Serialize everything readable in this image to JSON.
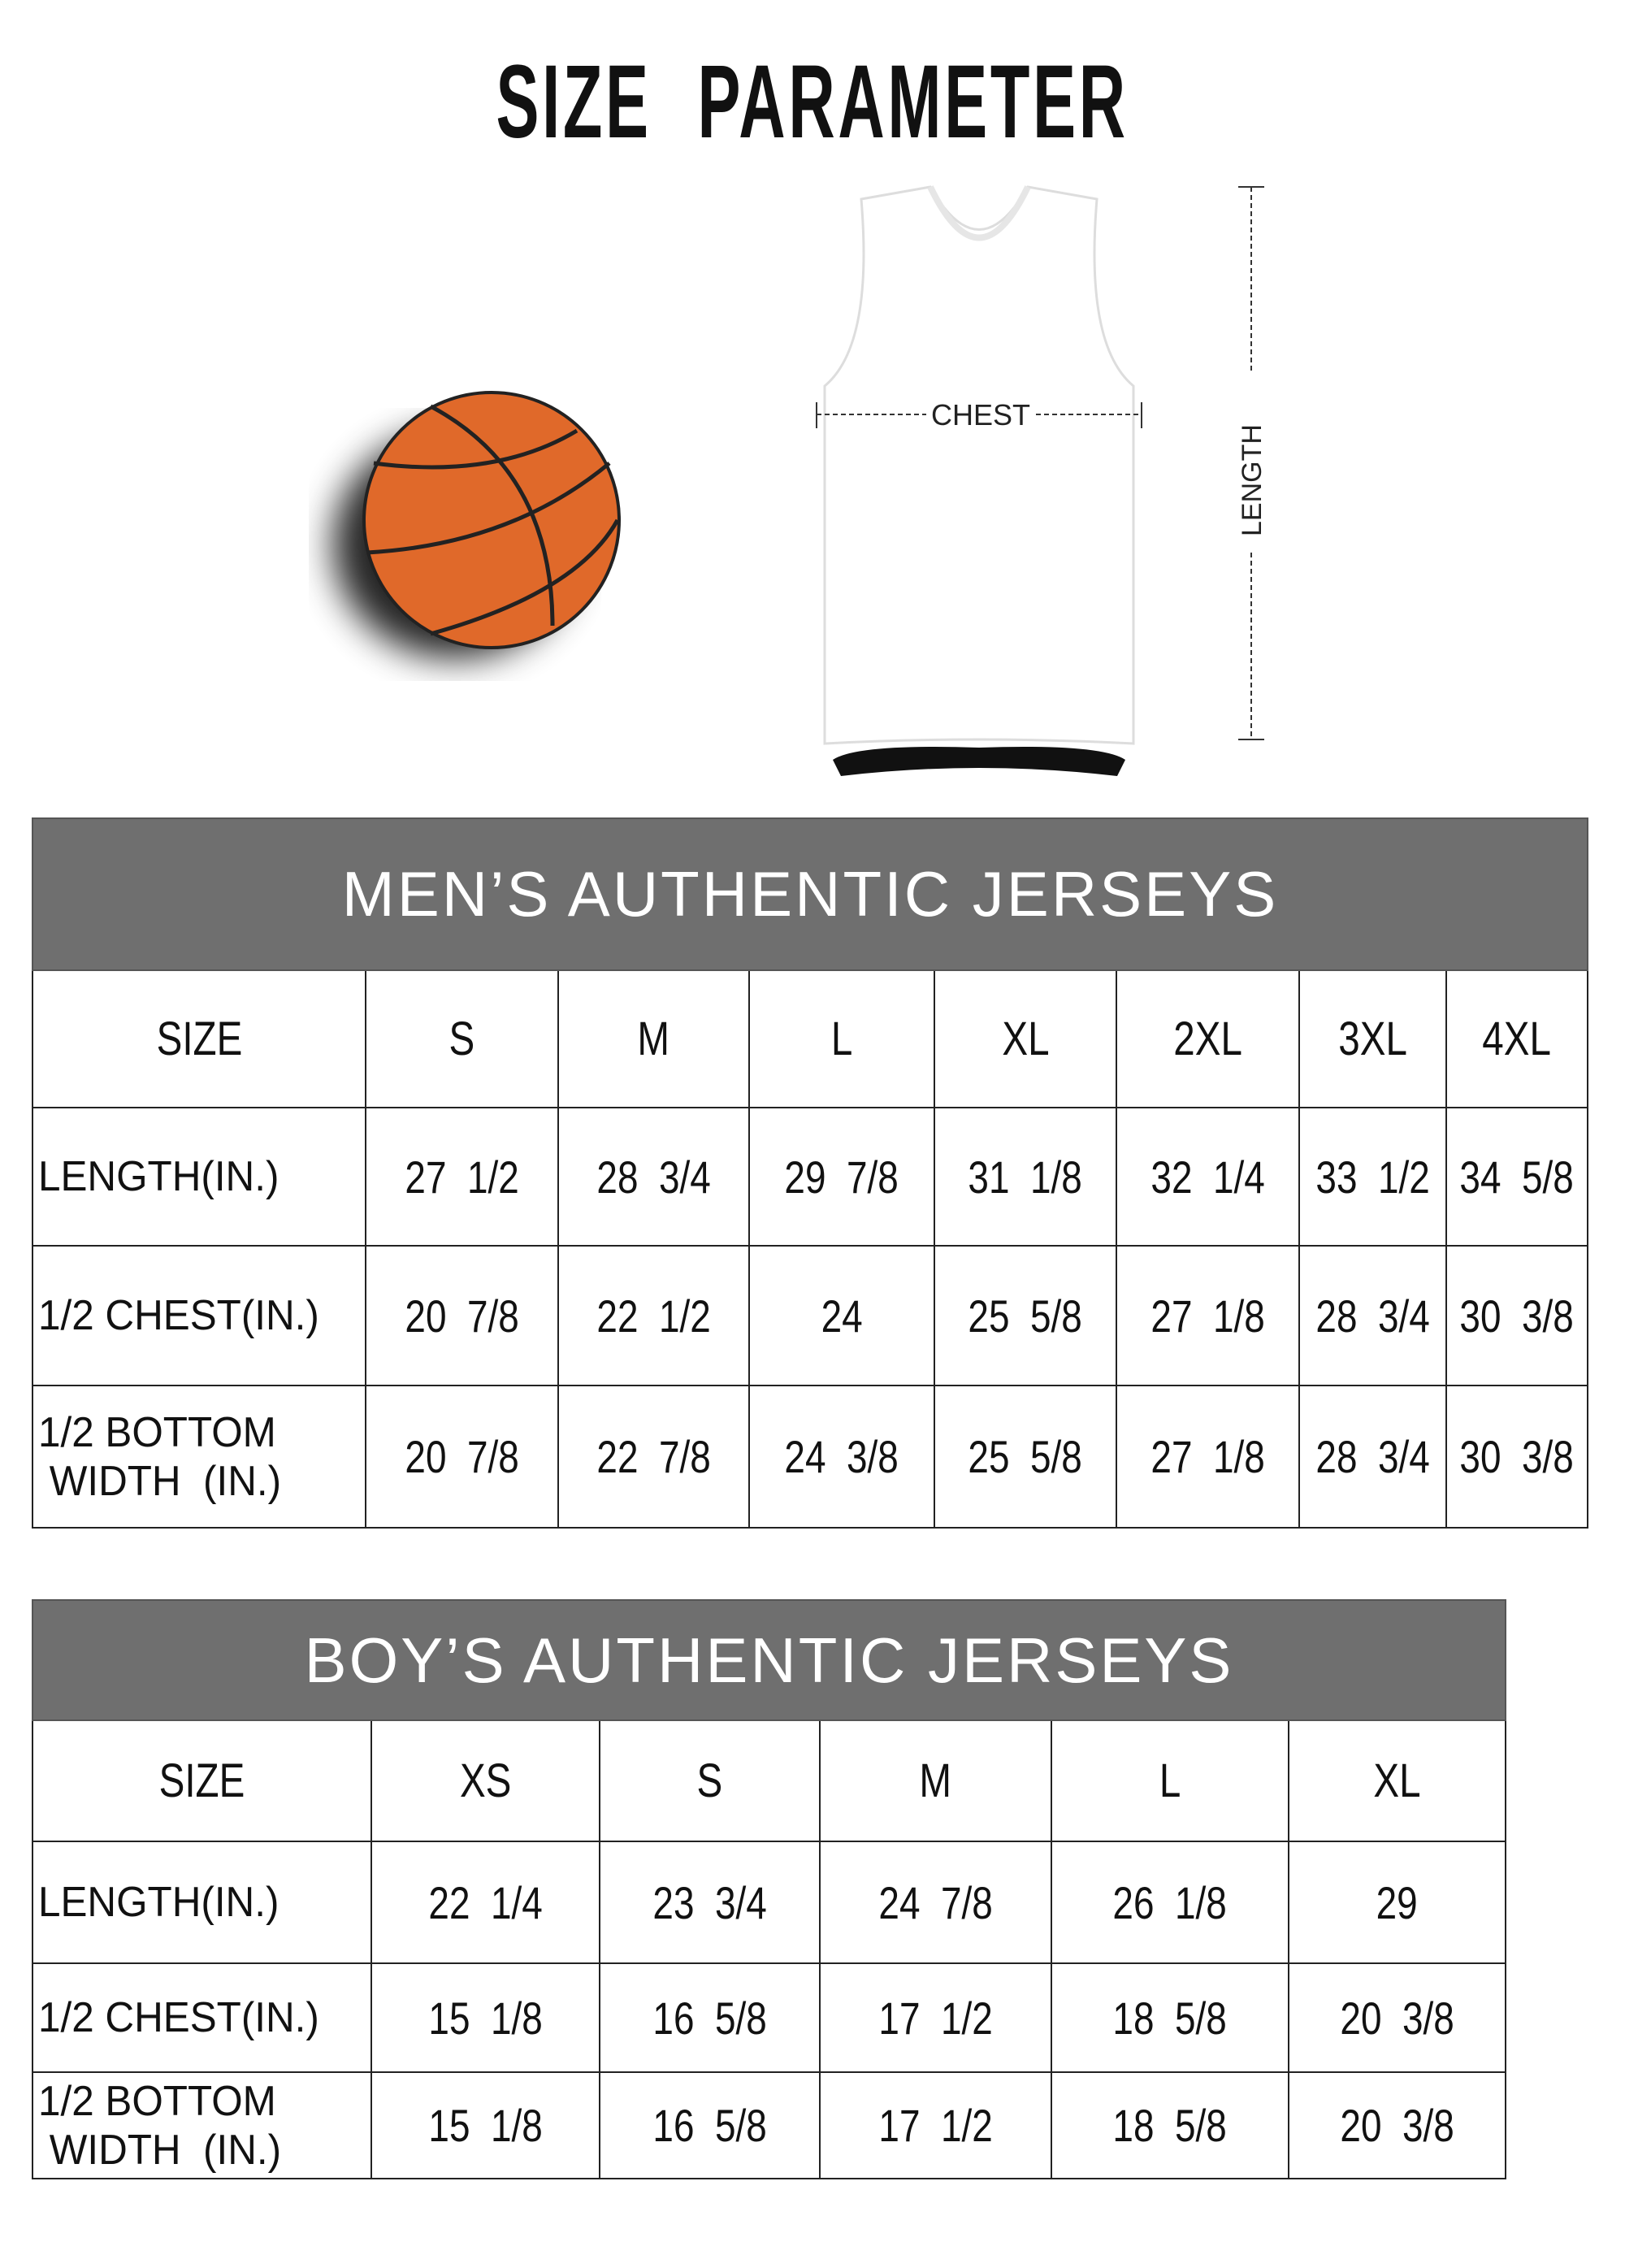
{
  "title": "SIZE PARAMETER",
  "diagram": {
    "chest_label": "CHEST",
    "length_label": "LENGTH"
  },
  "colors": {
    "header_bg": "#6f6f6f",
    "ball": "#e0692a"
  },
  "men": {
    "title": "MEN’S AUTHENTIC JERSEYS",
    "size_label": "SIZE",
    "sizes": [
      "S",
      "M",
      "L",
      "XL",
      "2XL",
      "3XL",
      "4XL"
    ],
    "rows": [
      {
        "label": "LENGTH(IN.)",
        "values": [
          "27  1/2",
          "28  3/4",
          "29  7/8",
          "31  1/8",
          "32  1/4",
          "33  1/2",
          "34  5/8"
        ]
      },
      {
        "label": "1/2 CHEST(IN.)",
        "values": [
          "20  7/8",
          "22  1/2",
          "24",
          "25  5/8",
          "27  1/8",
          "28  3/4",
          "30  3/8"
        ]
      },
      {
        "label": "1/2 BOTTOM\n WIDTH  (IN.)",
        "values": [
          "20  7/8",
          "22  7/8",
          "24  3/8",
          "25  5/8",
          "27  1/8",
          "28  3/4",
          "30  3/8"
        ]
      }
    ]
  },
  "boys": {
    "title": "BOY’S AUTHENTIC JERSEYS",
    "size_label": "SIZE",
    "sizes": [
      "XS",
      "S",
      "M",
      "L",
      "XL"
    ],
    "rows": [
      {
        "label": "LENGTH(IN.)",
        "values": [
          "22  1/4",
          "23  3/4",
          "24  7/8",
          "26  1/8",
          "29"
        ]
      },
      {
        "label": "1/2 CHEST(IN.)",
        "values": [
          "15  1/8",
          "16  5/8",
          "17  1/2",
          "18  5/8",
          "20  3/8"
        ]
      },
      {
        "label": "1/2 BOTTOM\n WIDTH  (IN.)",
        "values": [
          "15  1/8",
          "16  5/8",
          "17  1/2",
          "18  5/8",
          "20  3/8"
        ]
      }
    ]
  }
}
